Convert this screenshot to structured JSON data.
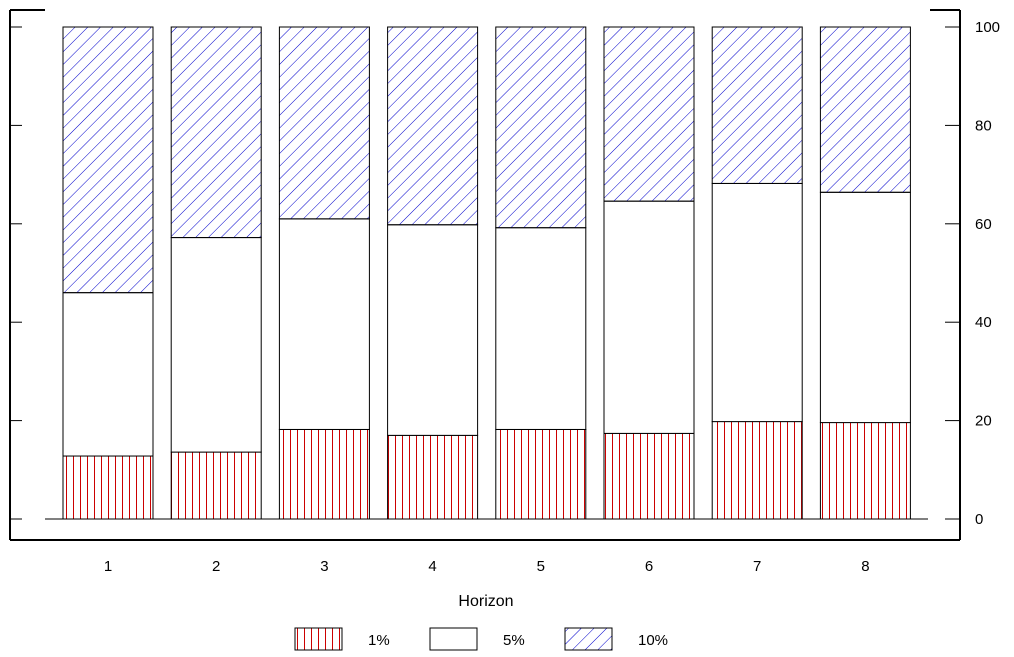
{
  "chart_data": {
    "type": "bar",
    "stacked": true,
    "categories": [
      "1",
      "2",
      "3",
      "4",
      "5",
      "6",
      "7",
      "8"
    ],
    "series": [
      {
        "name": "1%",
        "values": [
          12.8,
          13.6,
          18.2,
          17.0,
          18.2,
          17.4,
          19.8,
          19.6
        ],
        "color": "#cc0000",
        "pattern": "vertical-lines"
      },
      {
        "name": "5%",
        "values": [
          33.2,
          43.6,
          42.8,
          42.8,
          41.0,
          47.2,
          48.4,
          46.8
        ],
        "color": "#000000",
        "pattern": "none"
      },
      {
        "name": "10%",
        "values": [
          54.0,
          42.8,
          39.0,
          40.2,
          40.8,
          35.4,
          31.8,
          33.6
        ],
        "color": "#0000cc",
        "pattern": "diagonal-lines"
      }
    ],
    "xlabel": "Horizon",
    "ylabel": "",
    "ylim": [
      0,
      100
    ],
    "yticks": [
      0,
      20,
      40,
      60,
      80,
      100
    ],
    "y_axis_side": "right",
    "grid": false,
    "legend_position": "bottom"
  }
}
